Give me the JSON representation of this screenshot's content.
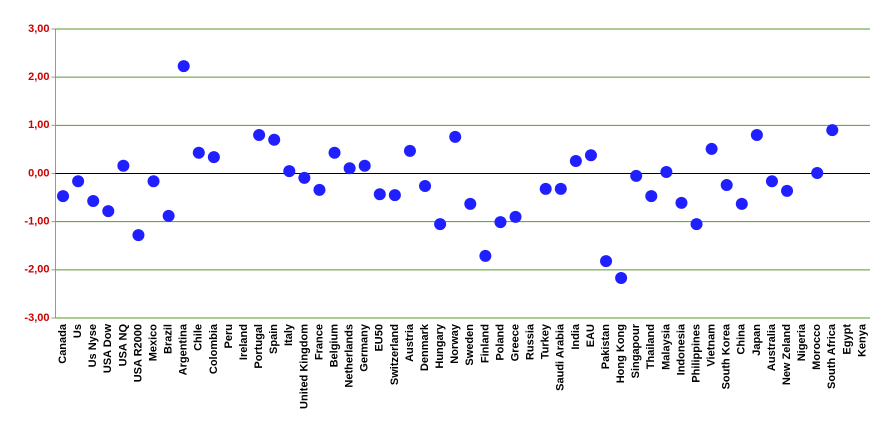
{
  "chart_data": {
    "type": "dot",
    "categories": [
      "Canada",
      "Us",
      "Us Nyse",
      "USA Dow",
      "USA NQ",
      "USA R2000",
      "Mexico",
      "Brazil",
      "Argentina",
      "Chile",
      "Colombia",
      "Peru",
      "Ireland",
      "Portugal",
      "Spain",
      "Italy",
      "United Kingdom",
      "France",
      "Belgium",
      "Netherlands",
      "Germany",
      "EU50",
      "Switzerland",
      "Austria",
      "Denmark",
      "Hungary",
      "Norway",
      "Sweden",
      "Finland",
      "Poland",
      "Greece",
      "Russia",
      "Turkey",
      "Saudi Arabia",
      "India",
      "EAU",
      "Pakistan",
      "Hong Kong",
      "Singapour",
      "Thailand",
      "Malaysia",
      "Indonesia",
      "Philippines",
      "Vietnam",
      "South Korea",
      "China",
      "Japan",
      "Australia",
      "New Zeland",
      "Nigeria",
      "Morocco",
      "South Africa",
      "Egypt",
      "Kenya"
    ],
    "values": [
      -0.47,
      -0.16,
      -0.57,
      -0.78,
      0.16,
      -1.28,
      -0.16,
      -0.88,
      2.23,
      0.43,
      0.34,
      null,
      null,
      0.8,
      0.7,
      0.05,
      -0.09,
      -0.34,
      0.43,
      0.11,
      0.16,
      -0.43,
      -0.45,
      0.47,
      -0.26,
      -1.05,
      0.76,
      -0.63,
      -1.71,
      -1.01,
      -0.9,
      null,
      -0.32,
      -0.32,
      0.26,
      0.38,
      -1.82,
      -2.17,
      -0.05,
      -0.47,
      0.03,
      -0.61,
      -1.05,
      0.51,
      -0.24,
      -0.63,
      0.8,
      -0.16,
      -0.36,
      null,
      0.01,
      0.9,
      null,
      null
    ],
    "color": "#1f1fff",
    "ylim": [
      -3,
      3
    ],
    "yticks": [
      {
        "value": -3,
        "label": "-3,00"
      },
      {
        "value": -2,
        "label": "-2,00"
      },
      {
        "value": -1,
        "label": "-1,00"
      },
      {
        "value": 0,
        "label": "0,00"
      },
      {
        "value": 1,
        "label": "1,00"
      },
      {
        "value": 2,
        "label": "2,00"
      },
      {
        "value": 3,
        "label": "3,00"
      }
    ],
    "grid": true
  }
}
